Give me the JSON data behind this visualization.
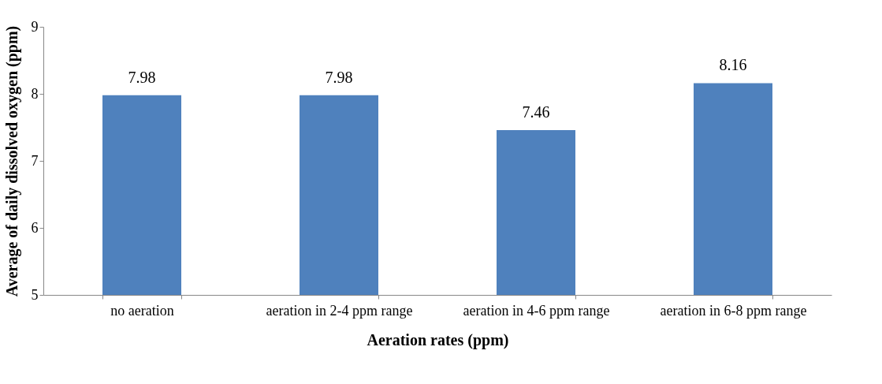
{
  "chart_data": {
    "type": "bar",
    "xlabel": "Aeration rates (ppm)",
    "ylabel": "Average of daily dissolved oxygen (ppm)",
    "categories": [
      "no aeration",
      "aeration in 2-4 ppm range",
      "aeration in 4-6 ppm range",
      "aeration in 6-8 ppm range"
    ],
    "values": [
      7.98,
      7.98,
      7.46,
      8.16
    ],
    "color": "#4f81bd",
    "ylim": [
      5,
      9
    ],
    "yticks": [
      5,
      6,
      7,
      8,
      9
    ],
    "grid": false,
    "data_labels": true
  }
}
